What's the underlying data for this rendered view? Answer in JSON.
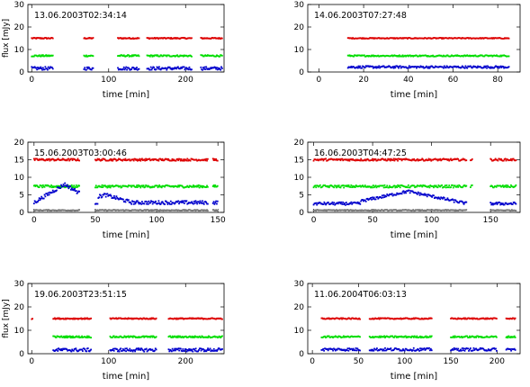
{
  "chart_data": [
    {
      "type": "scatter",
      "title": "13.06.2003T02:34:14",
      "xlabel": "time [min]",
      "ylabel": "flux [mJy]",
      "xlim": [
        -5,
        250
      ],
      "ylim": [
        0,
        30
      ],
      "xticks": [
        0,
        100,
        200
      ],
      "yticks": [
        0,
        10,
        20,
        30
      ],
      "series": [
        {
          "color": "#dd0000",
          "level": 15,
          "amp": 0.25,
          "segments": [
            [
              0,
              28
            ],
            [
              68,
              80
            ],
            [
              112,
              140
            ],
            [
              150,
              208
            ],
            [
              220,
              248
            ]
          ]
        },
        {
          "color": "#00dd00",
          "level": 7.2,
          "amp": 0.35,
          "segments": [
            [
              0,
              28
            ],
            [
              68,
              80
            ],
            [
              112,
              140
            ],
            [
              150,
              208
            ],
            [
              220,
              248
            ]
          ]
        },
        {
          "color": "#0000cc",
          "level": 1.6,
          "amp": 0.7,
          "segments": [
            [
              0,
              28
            ],
            [
              68,
              80
            ],
            [
              112,
              140
            ],
            [
              150,
              208
            ],
            [
              220,
              248
            ]
          ]
        }
      ]
    },
    {
      "type": "scatter",
      "title": "14.06.2003T07:27:48",
      "xlabel": "time [min]",
      "ylabel": "",
      "xlim": [
        -5,
        90
      ],
      "ylim": [
        0,
        30
      ],
      "xticks": [
        0,
        20,
        40,
        60,
        80
      ],
      "yticks": [
        0,
        10,
        20,
        30
      ],
      "series": [
        {
          "color": "#dd0000",
          "level": 15,
          "amp": 0.2,
          "segments": [
            [
              13,
              85
            ]
          ]
        },
        {
          "color": "#00dd00",
          "level": 7.2,
          "amp": 0.3,
          "segments": [
            [
              13,
              85
            ]
          ]
        },
        {
          "color": "#0000cc",
          "level": 2.2,
          "amp": 0.5,
          "segments": [
            [
              13,
              85
            ]
          ]
        }
      ]
    },
    {
      "type": "scatter",
      "title": "15.06.2003T03:00:46",
      "xlabel": "time [min]",
      "ylabel": "",
      "xlim": [
        -5,
        155
      ],
      "ylim": [
        0,
        20
      ],
      "xticks": [
        0,
        50,
        100,
        150
      ],
      "yticks": [
        0,
        5,
        10,
        15,
        20
      ],
      "series": [
        {
          "color": "#dd0000",
          "level": 15,
          "amp": 0.3,
          "segments": [
            [
              0,
              37
            ],
            [
              50,
              142
            ],
            [
              146,
              150
            ]
          ]
        },
        {
          "color": "#00dd00",
          "level": 7.4,
          "amp": 0.35,
          "segments": [
            [
              0,
              37
            ],
            [
              50,
              142
            ],
            [
              146,
              150
            ]
          ]
        },
        {
          "color": "#0000cc",
          "level": 2.8,
          "amp": 0.5,
          "segments": [
            [
              0,
              37
            ],
            [
              50,
              142
            ],
            [
              146,
              150
            ]
          ],
          "bumps": [
            {
              "x0": 0,
              "x1": 37,
              "peak": 8,
              "at": 25
            },
            {
              "x0": 52,
              "x1": 80,
              "peak": 5,
              "at": 58
            }
          ]
        },
        {
          "color": "#777777",
          "level": 0.6,
          "amp": 0.15,
          "segments": [
            [
              0,
              37
            ],
            [
              50,
              142
            ],
            [
              146,
              150
            ]
          ]
        }
      ]
    },
    {
      "type": "scatter",
      "title": "16.06.2003T04:47:25",
      "xlabel": "time [min]",
      "ylabel": "",
      "xlim": [
        -5,
        175
      ],
      "ylim": [
        0,
        20
      ],
      "xticks": [
        0,
        50,
        100,
        150
      ],
      "yticks": [
        0,
        5,
        10,
        15,
        20
      ],
      "series": [
        {
          "color": "#dd0000",
          "level": 15,
          "amp": 0.3,
          "segments": [
            [
              0,
              130
            ],
            [
              133,
              135
            ],
            [
              150,
              172
            ]
          ]
        },
        {
          "color": "#00dd00",
          "level": 7.4,
          "amp": 0.35,
          "segments": [
            [
              0,
              130
            ],
            [
              133,
              135
            ],
            [
              150,
              172
            ]
          ]
        },
        {
          "color": "#0000cc",
          "level": 2.5,
          "amp": 0.4,
          "segments": [
            [
              0,
              130
            ],
            [
              150,
              172
            ]
          ],
          "bumps": [
            {
              "x0": 40,
              "x1": 130,
              "peak": 6,
              "at": 80
            }
          ]
        },
        {
          "color": "#777777",
          "level": 0.6,
          "amp": 0.15,
          "segments": [
            [
              0,
              130
            ],
            [
              150,
              172
            ]
          ]
        }
      ]
    },
    {
      "type": "scatter",
      "title": "19.06.2003T23:51:15",
      "xlabel": "time [min]",
      "ylabel": "flux [mJy]",
      "xlim": [
        -5,
        250
      ],
      "ylim": [
        0,
        30
      ],
      "xticks": [
        0,
        100,
        200
      ],
      "yticks": [
        0,
        10,
        20,
        30
      ],
      "series": [
        {
          "color": "#dd0000",
          "level": 15,
          "amp": 0.25,
          "segments": [
            [
              0,
              1
            ],
            [
              28,
              78
            ],
            [
              102,
              162
            ],
            [
              178,
              248
            ]
          ]
        },
        {
          "color": "#00dd00",
          "level": 7.2,
          "amp": 0.35,
          "segments": [
            [
              28,
              78
            ],
            [
              102,
              162
            ],
            [
              178,
              248
            ]
          ]
        },
        {
          "color": "#0000cc",
          "level": 1.6,
          "amp": 0.7,
          "segments": [
            [
              28,
              78
            ],
            [
              102,
              162
            ],
            [
              178,
              248
            ]
          ]
        }
      ]
    },
    {
      "type": "scatter",
      "title": "11.06.2004T06:03:13",
      "xlabel": "time [min]",
      "ylabel": "",
      "xlim": [
        -5,
        225
      ],
      "ylim": [
        0,
        30
      ],
      "xticks": [
        0,
        50,
        100,
        150,
        200
      ],
      "yticks": [
        0,
        10,
        20,
        30
      ],
      "series": [
        {
          "color": "#dd0000",
          "level": 15,
          "amp": 0.25,
          "segments": [
            [
              10,
              52
            ],
            [
              62,
              130
            ],
            [
              150,
              200
            ],
            [
              210,
              220
            ]
          ]
        },
        {
          "color": "#00dd00",
          "level": 7.2,
          "amp": 0.35,
          "segments": [
            [
              10,
              52
            ],
            [
              62,
              130
            ],
            [
              150,
              200
            ],
            [
              210,
              220
            ]
          ]
        },
        {
          "color": "#0000cc",
          "level": 1.8,
          "amp": 0.6,
          "segments": [
            [
              10,
              52
            ],
            [
              62,
              130
            ],
            [
              150,
              200
            ],
            [
              210,
              220
            ]
          ]
        }
      ]
    }
  ]
}
